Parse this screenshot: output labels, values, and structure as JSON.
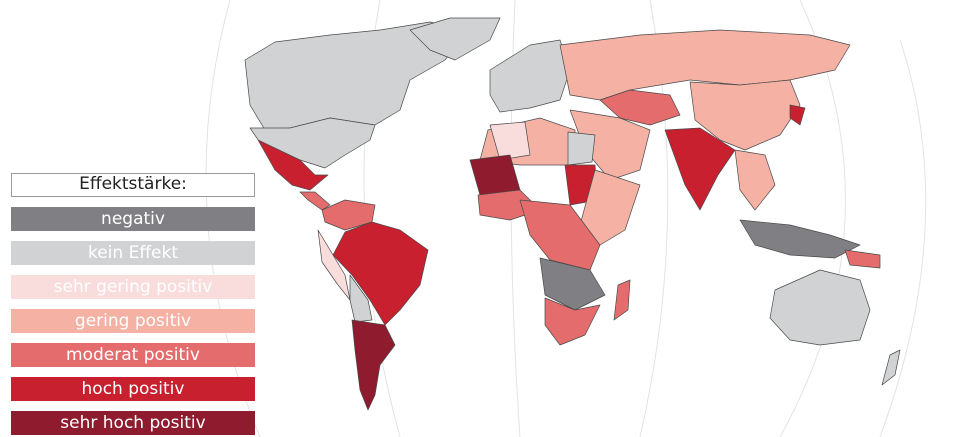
{
  "legend": {
    "title": "Effektstärke:",
    "items": [
      {
        "key": "neg",
        "label": "negativ",
        "color": "#807f83",
        "text_color": "#ffffff"
      },
      {
        "key": "none",
        "label": "kein Effekt",
        "color": "#d1d2d4",
        "text_color": "#ffffff"
      },
      {
        "key": "vlow",
        "label": "sehr gering positiv",
        "color": "#f9dcdc",
        "text_color": "#ffffff"
      },
      {
        "key": "low",
        "label": "gering positiv",
        "color": "#f4b1a4",
        "text_color": "#ffffff"
      },
      {
        "key": "mod",
        "label": "moderat positiv",
        "color": "#e46c6c",
        "text_color": "#ffffff"
      },
      {
        "key": "high",
        "label": "hoch positiv",
        "color": "#c8202f",
        "text_color": "#ffffff"
      },
      {
        "key": "vhigh",
        "label": "sehr hoch positiv",
        "color": "#8e1b2e",
        "text_color": "#ffffff"
      }
    ]
  },
  "regions": [
    {
      "name": "canada-alaska",
      "category": "none"
    },
    {
      "name": "greenland",
      "category": "none"
    },
    {
      "name": "usa",
      "category": "none"
    },
    {
      "name": "mexico",
      "category": "high"
    },
    {
      "name": "central-america",
      "category": "mod"
    },
    {
      "name": "venezuela-colombia",
      "category": "mod"
    },
    {
      "name": "brazil",
      "category": "high"
    },
    {
      "name": "peru-andes",
      "category": "vlow"
    },
    {
      "name": "argentina-chile",
      "category": "vhigh"
    },
    {
      "name": "bolivia-paraguay",
      "category": "none"
    },
    {
      "name": "europe-west",
      "category": "none"
    },
    {
      "name": "russia",
      "category": "low"
    },
    {
      "name": "china-mongolia",
      "category": "low"
    },
    {
      "name": "middle-east",
      "category": "low"
    },
    {
      "name": "iran-central-asia",
      "category": "mod"
    },
    {
      "name": "india",
      "category": "high"
    },
    {
      "name": "southeast-asia",
      "category": "low"
    },
    {
      "name": "indonesia",
      "category": "neg"
    },
    {
      "name": "new-guinea",
      "category": "mod"
    },
    {
      "name": "australia",
      "category": "none"
    },
    {
      "name": "new-zealand",
      "category": "none"
    },
    {
      "name": "north-africa",
      "category": "low"
    },
    {
      "name": "egypt",
      "category": "none"
    },
    {
      "name": "libya-algeria",
      "category": "vlow"
    },
    {
      "name": "west-africa",
      "category": "mod"
    },
    {
      "name": "mauritania-mali",
      "category": "vhigh"
    },
    {
      "name": "sudan",
      "category": "high"
    },
    {
      "name": "east-africa",
      "category": "low"
    },
    {
      "name": "central-africa",
      "category": "mod"
    },
    {
      "name": "southern-africa-neg",
      "category": "neg"
    },
    {
      "name": "south-africa",
      "category": "mod"
    },
    {
      "name": "madagascar",
      "category": "mod"
    },
    {
      "name": "japan-korea",
      "category": "high"
    }
  ]
}
